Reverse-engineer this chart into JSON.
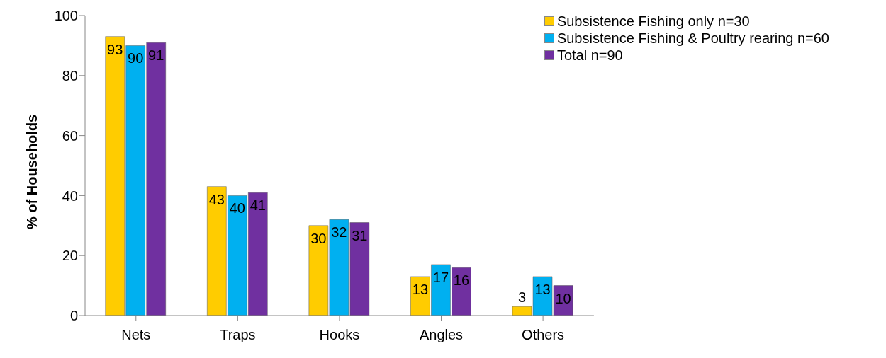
{
  "chart_data": {
    "type": "bar",
    "ylabel": "% of Households",
    "categories": [
      "Nets",
      "Traps",
      "Hooks",
      "Angles",
      "Others"
    ],
    "series": [
      {
        "name": "Subsistence Fishing only n=30",
        "color": "#ffcc00",
        "values": [
          93,
          43,
          30,
          13,
          3
        ]
      },
      {
        "name": "Subsistence Fishing & Poultry rearing n=60",
        "color": "#00b0f0",
        "values": [
          90,
          40,
          32,
          17,
          13
        ]
      },
      {
        "name": "Total n=90",
        "color": "#7030a0",
        "values": [
          91,
          41,
          31,
          16,
          10
        ]
      }
    ],
    "ylim": [
      0,
      100
    ],
    "yticks": [
      0,
      20,
      40,
      60,
      80,
      100
    ],
    "data_labels": true,
    "legend": "top right",
    "grid": false
  }
}
